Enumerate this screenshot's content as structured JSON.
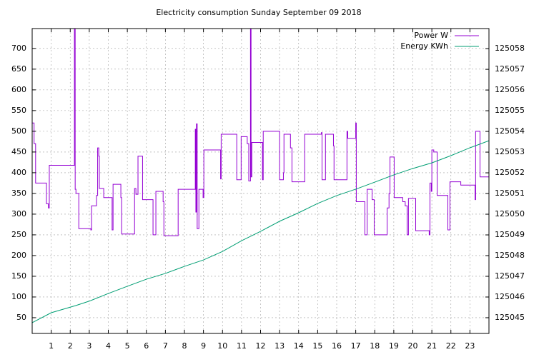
{
  "chart_data": {
    "type": "line",
    "title": "Electricity consumption Sunday September 09 2018",
    "xlim": [
      0,
      24
    ],
    "xticks": [
      1,
      2,
      3,
      4,
      5,
      6,
      7,
      8,
      9,
      10,
      11,
      12,
      13,
      14,
      15,
      16,
      17,
      18,
      19,
      20,
      21,
      22,
      23
    ],
    "ylim": [
      12,
      748
    ],
    "yticks": [
      50,
      100,
      150,
      200,
      250,
      300,
      350,
      400,
      450,
      500,
      550,
      600,
      650,
      700
    ],
    "y2lim": [
      125044.24,
      125058.97
    ],
    "y2ticks": [
      125045,
      125046,
      125047,
      125048,
      125049,
      125050,
      125051,
      125052,
      125053,
      125054,
      125055,
      125056,
      125057,
      125058
    ],
    "grid": true,
    "legend": "top-right",
    "series": [
      {
        "name": "Power W",
        "color": "#9400d3",
        "x": [
          0,
          0.1,
          0.1,
          0.18,
          0.18,
          0.75,
          0.75,
          0.85,
          0.85,
          0.9,
          0.9,
          2.22,
          2.22,
          2.26,
          2.26,
          2.3,
          2.3,
          2.45,
          2.45,
          3.08,
          3.08,
          3.12,
          3.12,
          3.38,
          3.38,
          3.44,
          3.44,
          3.5,
          3.5,
          3.53,
          3.53,
          3.76,
          3.76,
          4.2,
          4.2,
          4.25,
          4.25,
          4.66,
          4.66,
          4.7,
          4.7,
          5.38,
          5.38,
          5.45,
          5.45,
          5.56,
          5.56,
          5.8,
          5.8,
          6.35,
          6.35,
          6.5,
          6.5,
          6.88,
          6.88,
          6.92,
          6.92,
          7.67,
          7.67,
          8.57,
          8.57,
          8.6,
          8.6,
          8.63,
          8.63,
          8.67,
          8.67,
          8.76,
          8.76,
          8.98,
          8.98,
          9.02,
          9.02,
          9.9,
          9.9,
          9.93,
          9.93,
          10.75,
          10.75,
          10.98,
          10.98,
          11.3,
          11.3,
          11.38,
          11.38,
          11.47,
          11.47,
          11.5,
          11.5,
          11.54,
          11.54,
          12.1,
          12.1,
          12.14,
          12.14,
          13.0,
          13.0,
          13.2,
          13.2,
          13.23,
          13.23,
          13.57,
          13.57,
          13.65,
          13.65,
          14.32,
          14.32,
          15.2,
          15.2,
          15.23,
          15.23,
          15.41,
          15.41,
          15.83,
          15.83,
          15.86,
          15.86,
          16.54,
          16.54,
          16.58,
          16.58,
          17.0,
          17.0,
          17.03,
          17.03,
          17.48,
          17.48,
          17.6,
          17.6,
          17.86,
          17.86,
          17.97,
          17.97,
          18.65,
          18.65,
          18.75,
          18.75,
          18.8,
          18.8,
          19.02,
          19.02,
          19.47,
          19.47,
          19.6,
          19.6,
          19.7,
          19.7,
          19.77,
          19.77,
          20.15,
          20.15,
          20.86,
          20.86,
          20.9,
          20.9,
          20.97,
          20.97,
          21.0,
          21.0,
          21.1,
          21.1,
          21.28,
          21.28,
          21.84,
          21.84,
          21.95,
          21.95,
          22.52,
          22.52,
          23.27,
          23.27,
          23.3,
          23.3,
          23.53,
          23.53,
          24
        ],
        "values": [
          520,
          520,
          470,
          470,
          375,
          375,
          325,
          325,
          315,
          315,
          418,
          418,
          750,
          750,
          360,
          360,
          350,
          350,
          265,
          265,
          262,
          262,
          320,
          320,
          345,
          345,
          460,
          460,
          440,
          440,
          362,
          362,
          340,
          340,
          262,
          262,
          372,
          372,
          340,
          340,
          252,
          252,
          362,
          362,
          348,
          348,
          440,
          440,
          335,
          335,
          250,
          250,
          355,
          355,
          330,
          330,
          248,
          248,
          360,
          360,
          505,
          505,
          305,
          305,
          518,
          518,
          265,
          265,
          360,
          360,
          340,
          340,
          455,
          455,
          385,
          385,
          493,
          493,
          383,
          383,
          487,
          487,
          470,
          470,
          380,
          380,
          750,
          750,
          390,
          390,
          473,
          473,
          383,
          383,
          500,
          500,
          383,
          383,
          400,
          400,
          493,
          493,
          460,
          460,
          378,
          378,
          493,
          493,
          497,
          497,
          383,
          383,
          493,
          493,
          465,
          465,
          383,
          383,
          500,
          500,
          483,
          483,
          520,
          520,
          330,
          330,
          250,
          250,
          360,
          360,
          335,
          335,
          250,
          250,
          315,
          315,
          350,
          350,
          438,
          438,
          340,
          340,
          330,
          330,
          320,
          320,
          250,
          250,
          338,
          338,
          260,
          260,
          250,
          250,
          375,
          375,
          355,
          355,
          455,
          455,
          450,
          450,
          345,
          345,
          262,
          262,
          378,
          378,
          370,
          370,
          335,
          335,
          500,
          500,
          390,
          390
        ]
      },
      {
        "name": "Energy KWh",
        "color": "#009e73",
        "axis": "y2",
        "x": [
          0,
          1,
          2.3,
          3,
          4,
          5,
          6,
          7,
          8,
          9,
          10,
          11,
          12,
          13,
          14,
          15,
          16,
          17,
          18,
          19,
          20,
          21,
          22,
          23,
          24
        ],
        "values": [
          125044.76,
          125045.24,
          125045.59,
          125045.8,
          125046.17,
          125046.52,
          125046.86,
          125047.14,
          125047.48,
          125047.79,
          125048.2,
          125048.72,
          125049.17,
          125049.66,
          125050.07,
          125050.52,
          125050.9,
          125051.21,
          125051.55,
          125051.9,
          125052.21,
          125052.48,
          125052.83,
          125053.21,
          125053.55
        ]
      }
    ]
  }
}
